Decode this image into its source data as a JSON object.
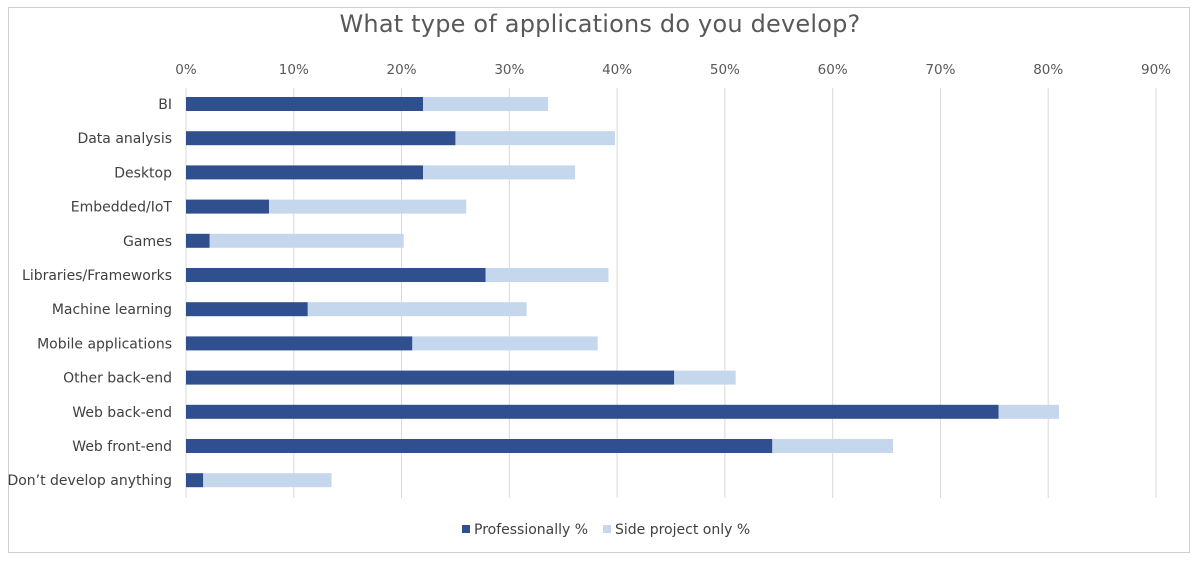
{
  "chart_data": {
    "type": "bar",
    "orientation": "horizontal",
    "stacked": true,
    "title": "What type of applications do you develop?",
    "xlabel": "",
    "ylabel": "",
    "xlim": [
      0,
      90
    ],
    "x_ticks": [
      "0%",
      "10%",
      "20%",
      "30%",
      "40%",
      "50%",
      "60%",
      "70%",
      "80%",
      "90%"
    ],
    "grid": true,
    "legend_position": "bottom",
    "categories": [
      "BI",
      "Data analysis",
      "Desktop",
      "Embedded/IoT",
      "Games",
      "Libraries/Frameworks",
      "Machine learning",
      "Mobile applications",
      "Other back-end",
      "Web back-end",
      "Web front-end",
      "Don’t develop anything"
    ],
    "series": [
      {
        "name": "Professionally %",
        "color": "#2f4f8f",
        "values": [
          22,
          25,
          22,
          7.7,
          2.2,
          27.8,
          11.3,
          21,
          45.3,
          75.4,
          54.4,
          1.6
        ]
      },
      {
        "name": "Side project only %",
        "color": "#c5d7ec",
        "values": [
          11.6,
          14.8,
          14.1,
          18.3,
          18,
          11.4,
          20.3,
          17.2,
          5.7,
          5.6,
          11.2,
          11.9
        ]
      }
    ]
  }
}
